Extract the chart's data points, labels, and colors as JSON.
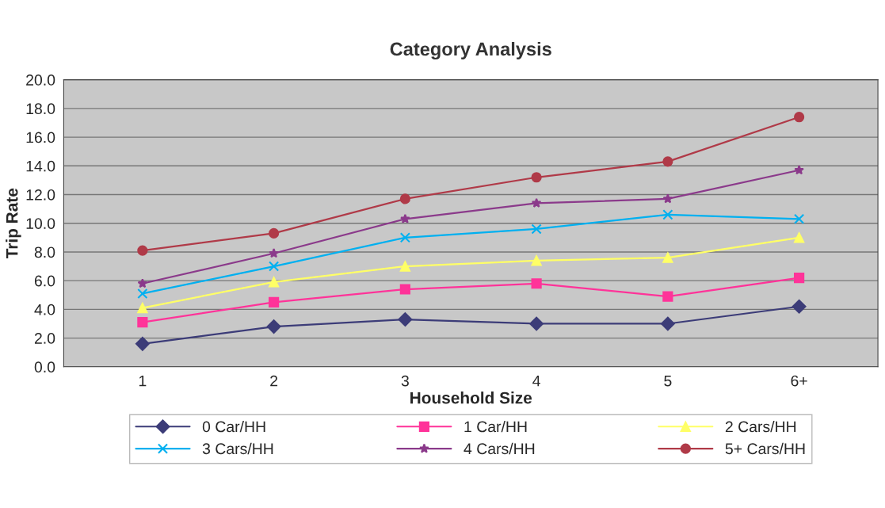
{
  "chart_data": {
    "type": "line",
    "title": "Category Analysis",
    "xlabel": "Household Size",
    "ylabel": "Trip Rate",
    "categories": [
      "1",
      "2",
      "3",
      "4",
      "5",
      "6+"
    ],
    "series": [
      {
        "name": "0 Car/HH",
        "color": "#3c3c78",
        "marker": "diamond",
        "values": [
          1.6,
          2.8,
          3.3,
          3.0,
          3.0,
          4.2
        ]
      },
      {
        "name": "1 Car/HH",
        "color": "#ff3399",
        "marker": "square",
        "values": [
          3.1,
          4.5,
          5.4,
          5.8,
          4.9,
          6.2
        ]
      },
      {
        "name": "2 Cars/HH",
        "color": "#ffff66",
        "marker": "triangle",
        "values": [
          4.1,
          5.9,
          7.0,
          7.4,
          7.6,
          9.0
        ]
      },
      {
        "name": "3 Cars/HH",
        "color": "#00b0f0",
        "marker": "cross",
        "values": [
          5.1,
          7.0,
          9.0,
          9.6,
          10.6,
          10.3
        ]
      },
      {
        "name": "4 Cars/HH",
        "color": "#8b3a8b",
        "marker": "star",
        "values": [
          5.8,
          7.9,
          10.3,
          11.4,
          11.7,
          13.7
        ]
      },
      {
        "name": "5+ Cars/HH",
        "color": "#b03a48",
        "marker": "circle",
        "values": [
          8.1,
          9.3,
          11.7,
          13.2,
          14.3,
          17.4
        ]
      }
    ],
    "ylim": [
      0,
      20
    ],
    "yticks": [
      {
        "value": 0,
        "label": "0.0"
      },
      {
        "value": 2,
        "label": "2.0"
      },
      {
        "value": 4,
        "label": "4.0"
      },
      {
        "value": 6,
        "label": "6.0"
      },
      {
        "value": 8,
        "label": "8.0"
      },
      {
        "value": 10,
        "label": "10.0"
      },
      {
        "value": 12,
        "label": "12.0"
      },
      {
        "value": 14,
        "label": "14.0"
      },
      {
        "value": 16,
        "label": "16.0"
      },
      {
        "value": 18,
        "label": "18.0"
      },
      {
        "value": 20,
        "label": "20.0"
      }
    ],
    "grid": "y",
    "legend": "bottom",
    "line_style": "solid"
  }
}
